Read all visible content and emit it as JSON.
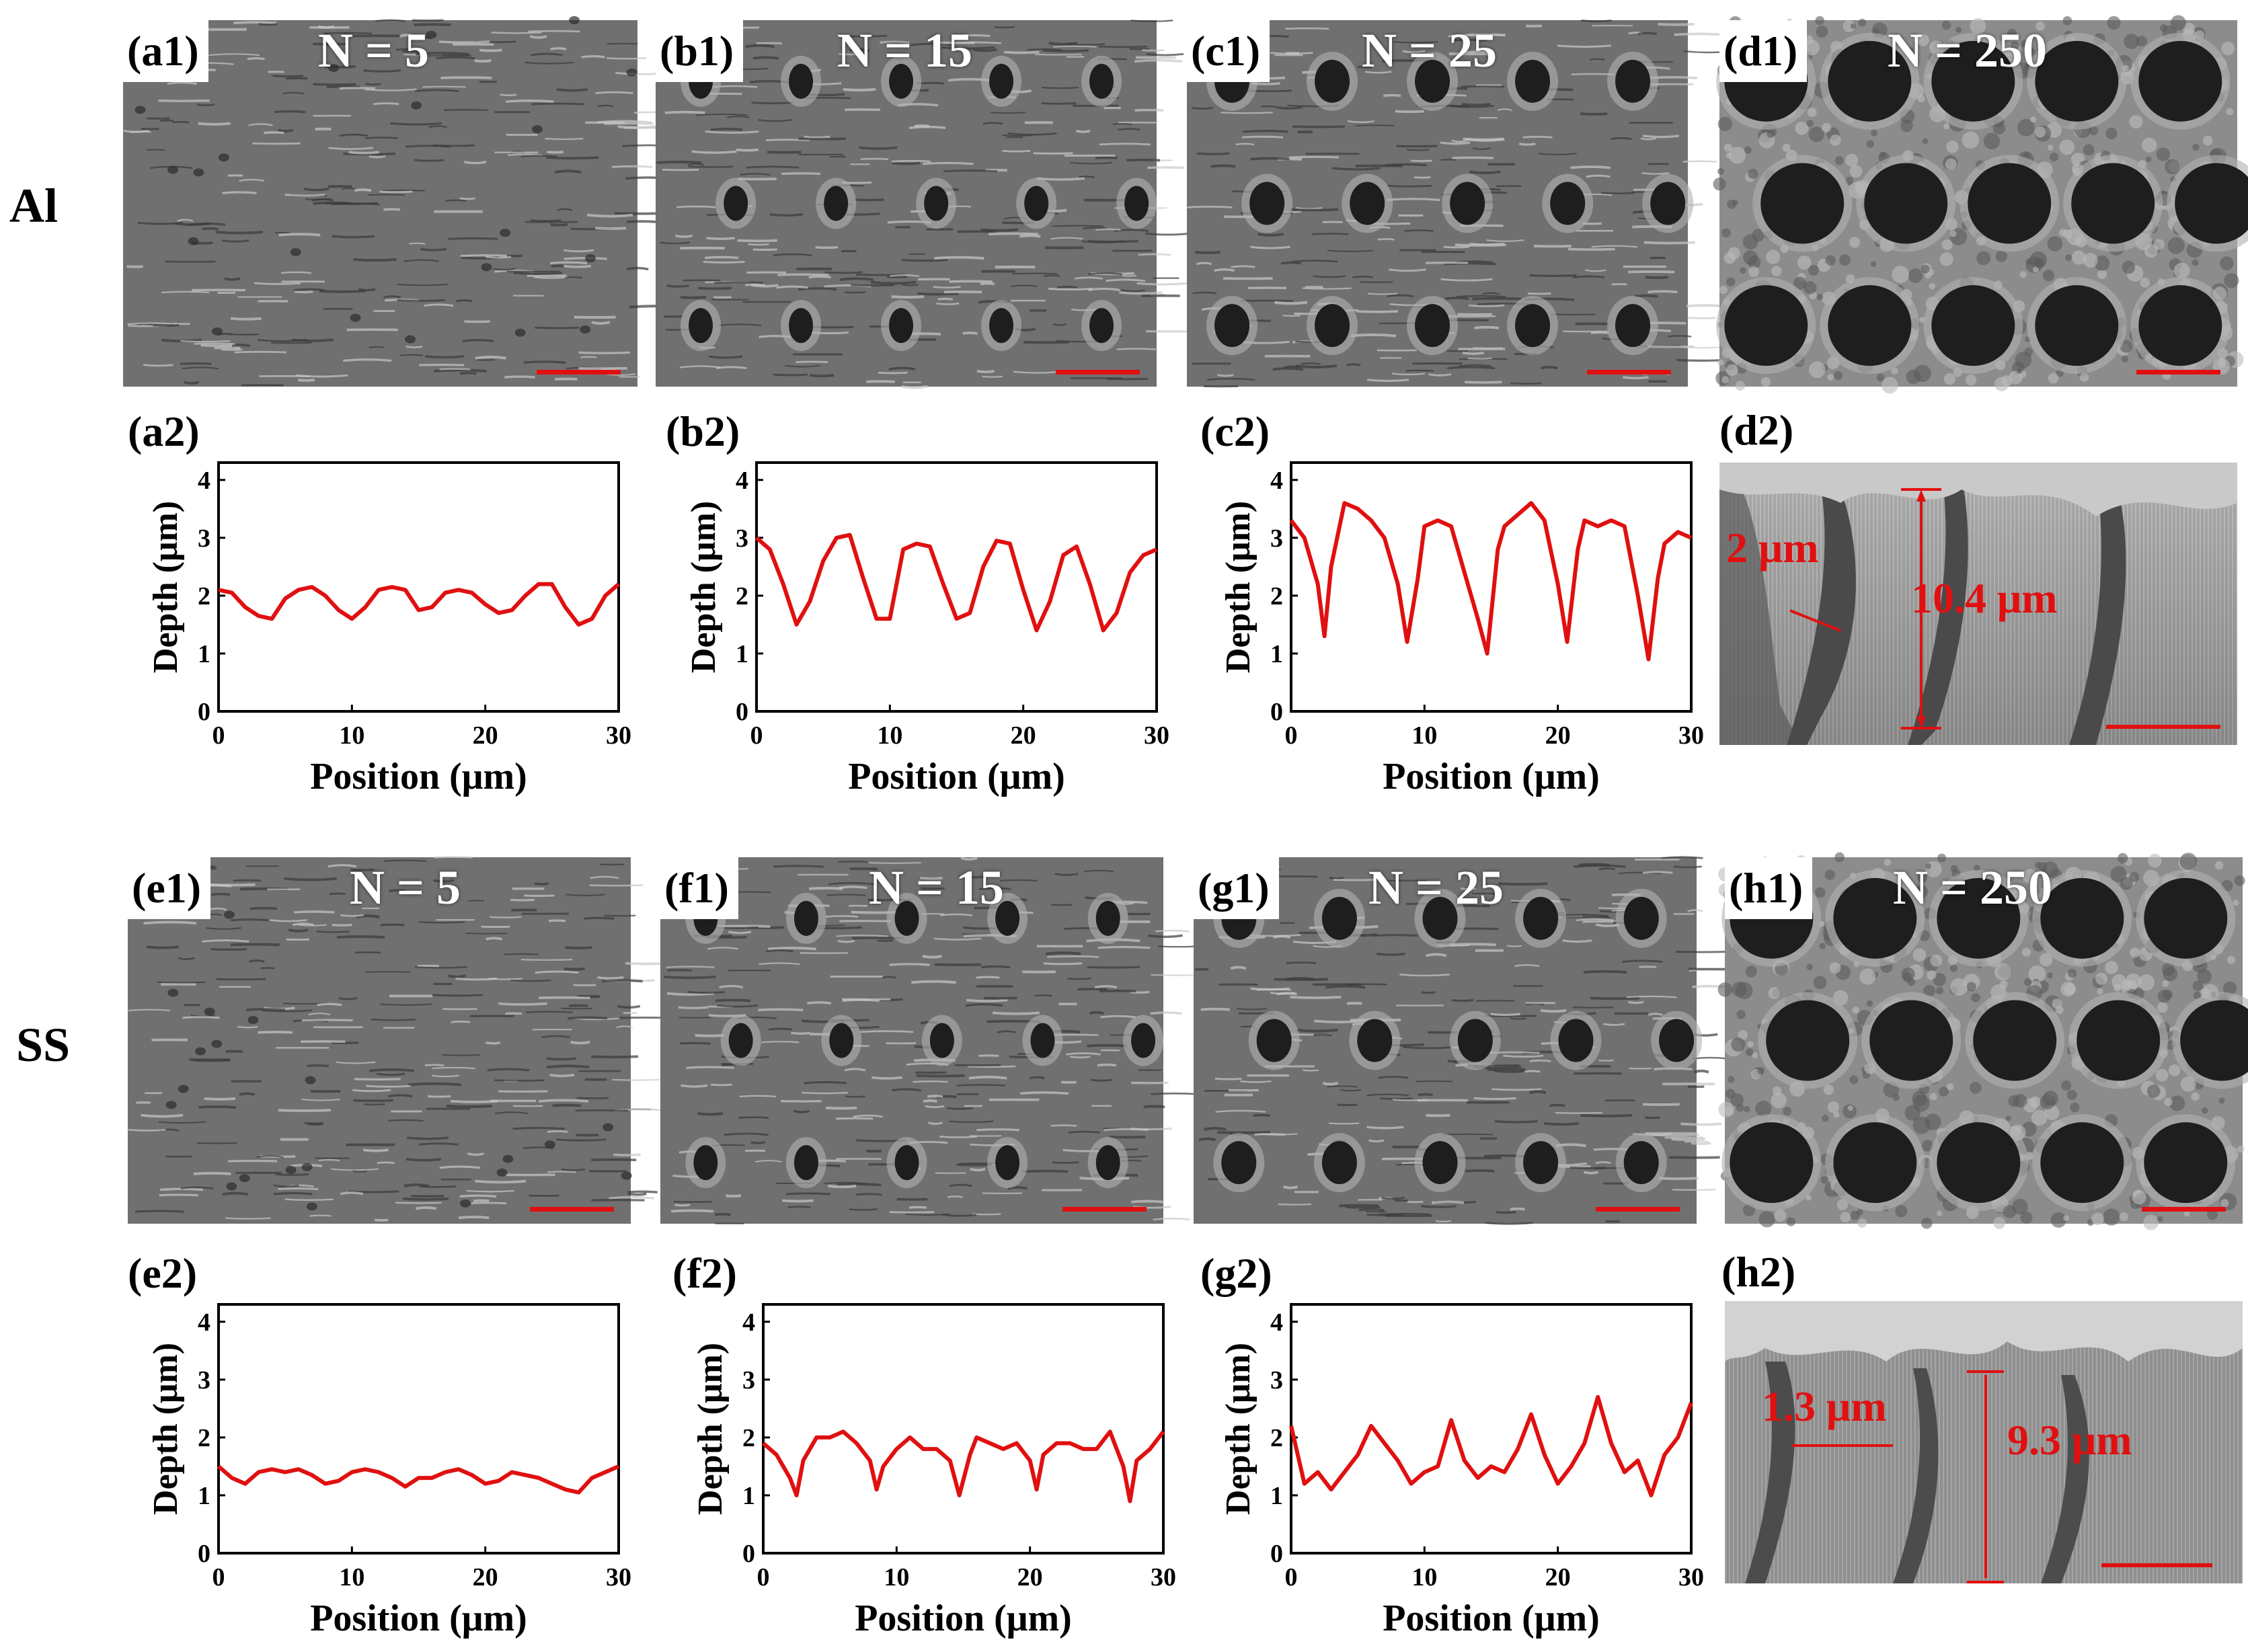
{
  "rows": {
    "al": "Al",
    "ss": "SS"
  },
  "sem_panels": [
    {
      "id": "a1",
      "label": "(a1)",
      "n": "N = 5",
      "pattern": "ripple"
    },
    {
      "id": "b1",
      "label": "(b1)",
      "n": "N = 15",
      "pattern": "holes-small"
    },
    {
      "id": "c1",
      "label": "(c1)",
      "n": "N = 25",
      "pattern": "holes-medium"
    },
    {
      "id": "d1",
      "label": "(d1)",
      "n": "N = 250",
      "pattern": "holes-large"
    },
    {
      "id": "e1",
      "label": "(e1)",
      "n": "N = 5",
      "pattern": "ripple"
    },
    {
      "id": "f1",
      "label": "(f1)",
      "n": "N = 15",
      "pattern": "holes-small"
    },
    {
      "id": "g1",
      "label": "(g1)",
      "n": "N = 25",
      "pattern": "holes-medium"
    },
    {
      "id": "h1",
      "label": "(h1)",
      "n": "N = 250",
      "pattern": "holes-large"
    }
  ],
  "cross_sections": {
    "d2": {
      "label": "(d2)",
      "width_annotation": "2 μm",
      "depth_annotation": "10.4 μm"
    },
    "h2": {
      "label": "(h2)",
      "width_annotation": "1.3 μm",
      "depth_annotation": "9.3 μm"
    }
  },
  "chart_data": [
    {
      "id": "a2",
      "label": "(a2)",
      "type": "line",
      "xlabel": "Position (μm)",
      "ylabel": "Depth (μm)",
      "xlim": [
        0,
        30
      ],
      "ylim": [
        0,
        4.3
      ],
      "xticks": [
        0,
        10,
        20,
        30
      ],
      "yticks": [
        0,
        1,
        2,
        3,
        4
      ],
      "color": "#e01010",
      "x": [
        0,
        1,
        2,
        3,
        4,
        5,
        6,
        7,
        8,
        9,
        10,
        11,
        12,
        13,
        14,
        15,
        16,
        17,
        18,
        19,
        20,
        21,
        22,
        23,
        24,
        25,
        26,
        27,
        28,
        29,
        30
      ],
      "y": [
        2.1,
        2.05,
        1.8,
        1.65,
        1.6,
        1.95,
        2.1,
        2.15,
        2.0,
        1.75,
        1.6,
        1.8,
        2.1,
        2.15,
        2.1,
        1.75,
        1.8,
        2.05,
        2.1,
        2.05,
        1.85,
        1.7,
        1.75,
        2.0,
        2.2,
        2.2,
        1.8,
        1.5,
        1.6,
        2.0,
        2.2
      ]
    },
    {
      "id": "b2",
      "label": "(b2)",
      "type": "line",
      "xlabel": "Position (μm)",
      "ylabel": "Depth (μm)",
      "xlim": [
        0,
        30
      ],
      "ylim": [
        0,
        4.3
      ],
      "xticks": [
        0,
        10,
        20,
        30
      ],
      "yticks": [
        0,
        1,
        2,
        3,
        4
      ],
      "color": "#e01010",
      "x": [
        0,
        1,
        2,
        3,
        4,
        5,
        6,
        7,
        8,
        9,
        10,
        11,
        12,
        13,
        14,
        15,
        16,
        17,
        18,
        19,
        20,
        21,
        22,
        23,
        24,
        25,
        26,
        27,
        28,
        29,
        30
      ],
      "y": [
        3.0,
        2.8,
        2.2,
        1.5,
        1.9,
        2.6,
        3.0,
        3.05,
        2.3,
        1.6,
        1.6,
        2.8,
        2.9,
        2.85,
        2.2,
        1.6,
        1.7,
        2.5,
        2.95,
        2.9,
        2.1,
        1.4,
        1.9,
        2.7,
        2.85,
        2.2,
        1.4,
        1.7,
        2.4,
        2.7,
        2.8
      ]
    },
    {
      "id": "c2",
      "label": "(c2)",
      "type": "line",
      "xlabel": "Position (μm)",
      "ylabel": "Depth (μm)",
      "xlim": [
        0,
        30
      ],
      "ylim": [
        0,
        4.3
      ],
      "xticks": [
        0,
        10,
        20,
        30
      ],
      "yticks": [
        0,
        1,
        2,
        3,
        4
      ],
      "color": "#e01010",
      "x": [
        0,
        1,
        2,
        2.5,
        3,
        4,
        5,
        6,
        7,
        8,
        8.7,
        9.5,
        10,
        11,
        12,
        13,
        14,
        14.7,
        15.5,
        16,
        17,
        18,
        19,
        20,
        20.7,
        21.5,
        22,
        23,
        24,
        25,
        26,
        26.8,
        27.5,
        28,
        29,
        30
      ],
      "y": [
        3.3,
        3.0,
        2.2,
        1.3,
        2.5,
        3.6,
        3.5,
        3.3,
        3.0,
        2.2,
        1.2,
        2.3,
        3.2,
        3.3,
        3.2,
        2.4,
        1.6,
        1.0,
        2.8,
        3.2,
        3.4,
        3.6,
        3.3,
        2.2,
        1.2,
        2.8,
        3.3,
        3.2,
        3.3,
        3.2,
        2.0,
        0.9,
        2.3,
        2.9,
        3.1,
        3.0
      ]
    },
    {
      "id": "e2",
      "label": "(e2)",
      "type": "line",
      "xlabel": "Position (μm)",
      "ylabel": "Depth (μm)",
      "xlim": [
        0,
        30
      ],
      "ylim": [
        0,
        4.3
      ],
      "xticks": [
        0,
        10,
        20,
        30
      ],
      "yticks": [
        0,
        1,
        2,
        3,
        4
      ],
      "color": "#e01010",
      "x": [
        0,
        1,
        2,
        3,
        4,
        5,
        6,
        7,
        8,
        9,
        10,
        11,
        12,
        13,
        14,
        15,
        16,
        17,
        18,
        19,
        20,
        21,
        22,
        23,
        24,
        25,
        26,
        27,
        28,
        29,
        30
      ],
      "y": [
        1.5,
        1.3,
        1.2,
        1.4,
        1.45,
        1.4,
        1.45,
        1.35,
        1.2,
        1.25,
        1.4,
        1.45,
        1.4,
        1.3,
        1.15,
        1.3,
        1.3,
        1.4,
        1.45,
        1.35,
        1.2,
        1.25,
        1.4,
        1.35,
        1.3,
        1.2,
        1.1,
        1.05,
        1.3,
        1.4,
        1.5
      ]
    },
    {
      "id": "f2",
      "label": "(f2)",
      "type": "line",
      "xlabel": "Position (μm)",
      "ylabel": "Depth (μm)",
      "xlim": [
        0,
        30
      ],
      "ylim": [
        0,
        4.3
      ],
      "xticks": [
        0,
        10,
        20,
        30
      ],
      "yticks": [
        0,
        1,
        2,
        3,
        4
      ],
      "color": "#e01010",
      "x": [
        0,
        1,
        2,
        2.5,
        3,
        4,
        5,
        6,
        7,
        8,
        8.5,
        9,
        10,
        11,
        12,
        13,
        14,
        14.7,
        15.5,
        16,
        17,
        18,
        19,
        20,
        20.5,
        21,
        22,
        23,
        24,
        25,
        26,
        27,
        27.5,
        28,
        29,
        30
      ],
      "y": [
        1.9,
        1.7,
        1.3,
        1.0,
        1.6,
        2.0,
        2.0,
        2.1,
        1.9,
        1.6,
        1.1,
        1.5,
        1.8,
        2.0,
        1.8,
        1.8,
        1.6,
        1.0,
        1.7,
        2.0,
        1.9,
        1.8,
        1.9,
        1.6,
        1.1,
        1.7,
        1.9,
        1.9,
        1.8,
        1.8,
        2.1,
        1.5,
        0.9,
        1.6,
        1.8,
        2.1
      ]
    },
    {
      "id": "g2",
      "label": "(g2)",
      "type": "line",
      "xlabel": "Position (μm)",
      "ylabel": "Depth (μm)",
      "xlim": [
        0,
        30
      ],
      "ylim": [
        0,
        4.3
      ],
      "xticks": [
        0,
        10,
        20,
        30
      ],
      "yticks": [
        0,
        1,
        2,
        3,
        4
      ],
      "color": "#e01010",
      "x": [
        0,
        1,
        2,
        3,
        4,
        5,
        6,
        7,
        8,
        9,
        10,
        11,
        12,
        13,
        14,
        15,
        16,
        17,
        18,
        19,
        20,
        21,
        22,
        23,
        24,
        25,
        26,
        27,
        28,
        29,
        30
      ],
      "y": [
        2.2,
        1.2,
        1.4,
        1.1,
        1.4,
        1.7,
        2.2,
        1.9,
        1.6,
        1.2,
        1.4,
        1.5,
        2.3,
        1.6,
        1.3,
        1.5,
        1.4,
        1.8,
        2.4,
        1.7,
        1.2,
        1.5,
        1.9,
        2.7,
        1.9,
        1.4,
        1.6,
        1.0,
        1.7,
        2.0,
        2.6
      ]
    }
  ]
}
